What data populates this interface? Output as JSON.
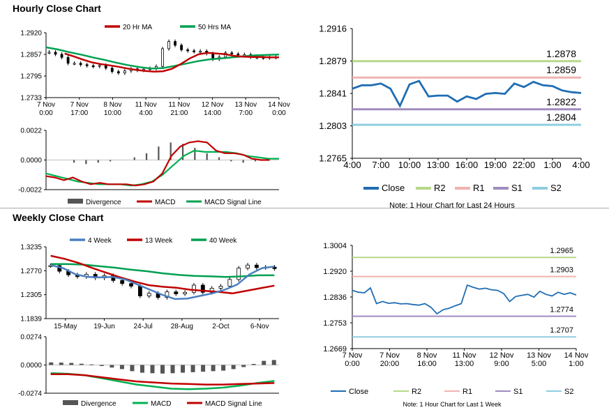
{
  "sections": {
    "hourly_title": "Hourly Close Chart",
    "weekly_title": "Weekly Close Chart"
  },
  "colors": {
    "ma20": "#c00000",
    "ma50": "#00a050",
    "wk4": "#4a7fc1",
    "macd_line_green": "#00b050",
    "divergence": "#555555",
    "close_blue": "#1f6db3",
    "r2": "#b6d88a",
    "r1": "#f0b3b0",
    "s1": "#a08cc0",
    "s2": "#8fcde0"
  },
  "chart_data": [
    {
      "id": "hourly_price",
      "type": "line",
      "title": "",
      "legend": [
        "20 Hr MA",
        "50 Hrs MA"
      ],
      "ylim": [
        1.2733,
        1.292
      ],
      "yticks": [
        "1.2920",
        "1.2857",
        "1.2795",
        "1.2733"
      ],
      "xticks": [
        [
          "7 Nov",
          "0:00"
        ],
        [
          "7 Nov",
          "17:00"
        ],
        [
          "8 Nov",
          "10:00"
        ],
        [
          "11 Nov",
          "4:00"
        ],
        [
          "11 Nov",
          "21:00"
        ],
        [
          "12 Nov",
          "14:00"
        ],
        [
          "13 Nov",
          "7:00"
        ],
        [
          "14 Nov",
          "0:00"
        ]
      ],
      "series": [
        {
          "name": "Close",
          "values": [
            1.2864,
            1.2858,
            1.2849,
            1.2832,
            1.2832,
            1.2828,
            1.2825,
            1.2823,
            1.2826,
            1.2818,
            1.2808,
            1.2804,
            1.281,
            1.2816,
            1.2812,
            1.2815,
            1.2817,
            1.2823,
            1.2874,
            1.2895,
            1.2884,
            1.2871,
            1.2868,
            1.2866,
            1.2867,
            1.286,
            1.2844,
            1.285,
            1.2862,
            1.2859,
            1.2856,
            1.2857,
            1.285,
            1.2849,
            1.2848,
            1.285,
            1.2849
          ]
        },
        {
          "name": "20 Hr MA",
          "values": [
            1.286,
            1.2852,
            1.2843,
            1.2835,
            1.283,
            1.2826,
            1.2822,
            1.2817,
            1.2813,
            1.281,
            1.2808,
            1.2809,
            1.2816,
            1.283,
            1.2846,
            1.2858,
            1.2862,
            1.286,
            1.2858,
            1.2853,
            1.2851,
            1.285,
            1.285,
            1.2849,
            1.2849
          ]
        },
        {
          "name": "50 Hrs MA",
          "values": [
            1.2878,
            1.2872,
            1.2864,
            1.2857,
            1.2849,
            1.2842,
            1.2834,
            1.2827,
            1.2821,
            1.2817,
            1.2818,
            1.2824,
            1.2831,
            1.2838,
            1.2843,
            1.2846,
            1.2849,
            1.2852,
            1.2855,
            1.2856,
            1.2857
          ]
        }
      ]
    },
    {
      "id": "hourly_macd",
      "type": "line",
      "legend": [
        "Divergence",
        "MACD",
        "MACD Signal Line"
      ],
      "ylim": [
        -0.0022,
        0.0022
      ],
      "yticks": [
        "0.0022",
        "0.0000",
        "-0.0022"
      ],
      "series": [
        {
          "name": "MACD",
          "values": [
            -0.0012,
            -0.0013,
            -0.0015,
            -0.0013,
            -0.0016,
            -0.0018,
            -0.0017,
            -0.0018,
            -0.0018,
            -0.0018,
            -0.0019,
            -0.0018,
            -0.0016,
            -0.001,
            0.0003,
            0.001,
            0.0013,
            0.0014,
            0.0013,
            0.0007,
            0.0005,
            0.0005,
            0.0004,
            0.0001,
            0.0,
            0.0
          ]
        },
        {
          "name": "MACD Signal Line",
          "values": [
            -0.001,
            -0.0012,
            -0.0014,
            -0.0016,
            -0.0017,
            -0.0018,
            -0.0018,
            -0.0018,
            -0.0019,
            -0.0018,
            -0.0016,
            -0.0011,
            -0.0004,
            0.0003,
            0.0007,
            0.0006,
            0.0006,
            0.0006,
            0.0005,
            0.0003,
            0.0002,
            0.0001,
            0.0001
          ]
        },
        {
          "name": "Divergence",
          "values": [
            -0.0002,
            -0.0003,
            -0.0002,
            -0.0001,
            0.0,
            0.0002,
            0.0005,
            0.001,
            0.0013,
            0.0012,
            0.0009,
            0.0005,
            0.0002,
            -0.0001,
            -0.0002,
            -0.0001,
            0.0
          ]
        }
      ]
    },
    {
      "id": "hourly_levels",
      "type": "line",
      "note": "Note: 1 Hour Chart for Last 24 Hours",
      "ylim": [
        1.2765,
        1.2916
      ],
      "yticks": [
        "1.2916",
        "1.2879",
        "1.2841",
        "1.2803",
        "1.2765"
      ],
      "xticks": [
        "4:00",
        "7:00",
        "10:00",
        "13:00",
        "16:00",
        "19:00",
        "22:00",
        "1:00",
        "4:00"
      ],
      "legend": [
        "Close",
        "R2",
        "R1",
        "S1",
        "S2"
      ],
      "levels": {
        "R2": 1.2878,
        "R1": 1.2859,
        "S1": 1.2822,
        "S2": 1.2804
      },
      "level_labels": {
        "R2": "1.2878",
        "R1": "1.2859",
        "S1": "1.2822",
        "S2": "1.2804"
      },
      "series": [
        {
          "name": "Close",
          "values": [
            1.2846,
            1.285,
            1.285,
            1.2852,
            1.2846,
            1.2826,
            1.2851,
            1.2855,
            1.2837,
            1.2838,
            1.2838,
            1.2831,
            1.2837,
            1.2834,
            1.284,
            1.2841,
            1.284,
            1.2852,
            1.2848,
            1.2854,
            1.285,
            1.2849,
            1.2844,
            1.2842,
            1.2841
          ]
        }
      ]
    },
    {
      "id": "weekly_price",
      "type": "line",
      "legend": [
        "4 Week",
        "13 Week",
        "40 Week"
      ],
      "ylim": [
        1.1839,
        1.3235
      ],
      "yticks": [
        "1.3235",
        "1.2770",
        "1.2305",
        "1.1839"
      ],
      "xticks": [
        "15-May",
        "19-Jun",
        "24-Jul",
        "28-Aug",
        "2-Oct",
        "6-Nov"
      ],
      "series": [
        {
          "name": "Close",
          "values": [
            1.287,
            1.276,
            1.269,
            1.2655,
            1.27,
            1.263,
            1.2675,
            1.258,
            1.252,
            1.247,
            1.228,
            1.233,
            1.225,
            1.236,
            1.232,
            1.235,
            1.249,
            1.235,
            1.243,
            1.247,
            1.26,
            1.282,
            1.288,
            1.283,
            1.284,
            1.281
          ]
        },
        {
          "name": "4 Week",
          "values": [
            1.288,
            1.282,
            1.27,
            1.265,
            1.264,
            1.265,
            1.26,
            1.25,
            1.24,
            1.23,
            1.222,
            1.223,
            1.228,
            1.233,
            1.24,
            1.25,
            1.27,
            1.282,
            1.285
          ]
        },
        {
          "name": "13 Week",
          "values": [
            1.306,
            1.3,
            1.292,
            1.282,
            1.273,
            1.264,
            1.256,
            1.249,
            1.246,
            1.244,
            1.24,
            1.238,
            1.236,
            1.233,
            1.238,
            1.243,
            1.248
          ]
        },
        {
          "name": "40 Week",
          "values": [
            1.29,
            1.29,
            1.289,
            1.286,
            1.283,
            1.279,
            1.276,
            1.272,
            1.269,
            1.267,
            1.266,
            1.265,
            1.266,
            1.268,
            1.268
          ]
        }
      ]
    },
    {
      "id": "weekly_macd",
      "type": "bar",
      "legend": [
        "Divergence",
        "MACD",
        "MACD Signal Line"
      ],
      "ylim": [
        -0.0274,
        0.0274
      ],
      "yticks": [
        "0.0274",
        "0.0000",
        "-0.0274"
      ],
      "series": [
        {
          "name": "Divergence",
          "values": [
            0.0025,
            0.0023,
            0.002,
            0.0012,
            0.0005,
            -0.001,
            -0.0025,
            -0.004,
            -0.006,
            -0.0075,
            -0.008,
            -0.0083,
            -0.008,
            -0.0075,
            -0.007,
            -0.0065,
            -0.006,
            -0.0055,
            -0.004,
            -0.002,
            0.001,
            0.004,
            0.0048
          ]
        },
        {
          "name": "MACD",
          "values": [
            -0.008,
            -0.0085,
            -0.01,
            -0.013,
            -0.016,
            -0.019,
            -0.021,
            -0.023,
            -0.0235,
            -0.023,
            -0.022,
            -0.02,
            -0.0175,
            -0.0155
          ]
        },
        {
          "name": "MACD Signal Line",
          "values": [
            -0.009,
            -0.009,
            -0.01,
            -0.012,
            -0.014,
            -0.016,
            -0.017,
            -0.018,
            -0.0185,
            -0.019,
            -0.019,
            -0.0185,
            -0.018,
            -0.0175
          ]
        }
      ]
    },
    {
      "id": "weekly_levels",
      "type": "line",
      "note": "Note: 1 Hour Chart for Last 1 Week",
      "ylim": [
        1.2669,
        1.3004
      ],
      "yticks": [
        "1.3004",
        "1.2920",
        "1.2836",
        "1.2753",
        "1.2669"
      ],
      "xticks": [
        [
          "7 Nov",
          "0:00"
        ],
        [
          "7 Nov",
          "20:00"
        ],
        [
          "8 Nov",
          "16:00"
        ],
        [
          "11 Nov",
          "13:00"
        ],
        [
          "12 Nov",
          "9:00"
        ],
        [
          "13 Nov",
          "5:00"
        ],
        [
          "14 Nov",
          "1:00"
        ]
      ],
      "legend": [
        "Close",
        "R2",
        "R1",
        "S1",
        "S2"
      ],
      "levels": {
        "R2": 1.2965,
        "R1": 1.2903,
        "S1": 1.2774,
        "S2": 1.2707
      },
      "level_labels": {
        "R2": "1.2965",
        "R1": "1.2903",
        "S1": "1.2774",
        "S2": "1.2707"
      },
      "series": [
        {
          "name": "Close",
          "values": [
            1.2858,
            1.2852,
            1.285,
            1.2866,
            1.2815,
            1.2822,
            1.2816,
            1.2818,
            1.2814,
            1.2815,
            1.2812,
            1.281,
            1.2815,
            1.2803,
            1.2782,
            1.2795,
            1.28,
            1.2808,
            1.2815,
            1.2875,
            1.2868,
            1.2862,
            1.2865,
            1.286,
            1.2858,
            1.2848,
            1.2822,
            1.2838,
            1.2842,
            1.2845,
            1.2836,
            1.2855,
            1.2845,
            1.284,
            1.2852,
            1.2845,
            1.285,
            1.2843
          ]
        }
      ]
    }
  ]
}
